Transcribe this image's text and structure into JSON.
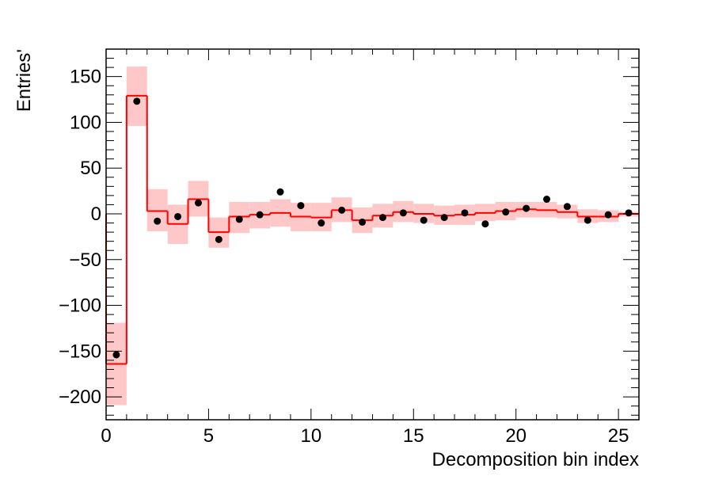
{
  "chart_data": {
    "type": "histogram",
    "title": "",
    "xlabel": "Decomposition bin index",
    "ylabel": "Entries'",
    "xlim": [
      0,
      26
    ],
    "ylim": [
      -225,
      180
    ],
    "x_ticks": [
      0,
      5,
      10,
      15,
      20,
      25
    ],
    "y_ticks": [
      -200,
      -150,
      -100,
      -50,
      0,
      50,
      100,
      150
    ],
    "grid": false,
    "legend": "none",
    "colors": {
      "histogram_line": "#ff0000",
      "error_band": "#ffc8c8",
      "points": "#000000"
    },
    "series": [
      {
        "kind": "step",
        "bins": [
          0,
          1,
          2,
          3,
          4,
          5,
          6,
          7,
          8,
          9,
          10,
          11,
          12,
          13,
          14,
          15,
          16,
          17,
          18,
          19,
          20,
          21,
          22,
          23,
          24,
          25
        ],
        "values": [
          -164,
          129,
          3,
          -11,
          16,
          -20,
          -3,
          -1,
          1,
          -3,
          -4,
          4,
          -7,
          -2,
          2,
          0,
          -2,
          -1,
          1,
          3,
          5,
          4,
          2,
          -3,
          -3,
          0
        ],
        "band_low": [
          -209,
          96,
          -19,
          -33,
          -3,
          -37,
          -21,
          -16,
          -14,
          -19,
          -19,
          -9,
          -21,
          -15,
          -9,
          -10,
          -12,
          -12,
          -8,
          -7,
          -4,
          -4,
          -5,
          -10,
          -9,
          -3
        ],
        "band_high": [
          -119,
          161,
          27,
          10,
          36,
          -4,
          13,
          13,
          16,
          12,
          12,
          18,
          7,
          11,
          14,
          11,
          9,
          10,
          11,
          13,
          13,
          13,
          10,
          5,
          4,
          2
        ]
      },
      {
        "kind": "points",
        "x": [
          0.5,
          1.5,
          2.5,
          3.5,
          4.5,
          5.5,
          6.5,
          7.5,
          8.5,
          9.5,
          10.5,
          11.5,
          12.5,
          13.5,
          14.5,
          15.5,
          16.5,
          17.5,
          18.5,
          19.5,
          20.5,
          21.5,
          22.5,
          23.5,
          24.5,
          25.5
        ],
        "y": [
          -154,
          123,
          -8,
          -3,
          12,
          -28,
          -6,
          -1,
          24,
          9,
          -10,
          4,
          -9,
          -4,
          1,
          -7,
          -4,
          1,
          -11,
          2,
          6,
          16,
          8,
          -7,
          -1,
          1
        ]
      }
    ]
  }
}
